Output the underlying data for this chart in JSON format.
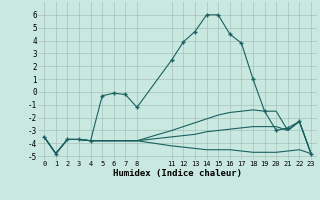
{
  "title": "",
  "xlabel": "Humidex (Indice chaleur)",
  "background_color": "#c8e8e0",
  "grid_color": "#a0b8b0",
  "line_color": "#1a6060",
  "xlim": [
    -0.5,
    23.5
  ],
  "ylim": [
    -5.3,
    7.0
  ],
  "xtick_positions": [
    0,
    1,
    2,
    3,
    4,
    5,
    6,
    7,
    8,
    11,
    12,
    13,
    14,
    15,
    16,
    17,
    18,
    19,
    20,
    21,
    22,
    23
  ],
  "xtick_labels": [
    "0",
    "1",
    "2",
    "3",
    "4",
    "5",
    "6",
    "7",
    "8",
    "11",
    "12",
    "13",
    "14",
    "15",
    "16",
    "17",
    "18",
    "19",
    "20",
    "21",
    "22",
    "23"
  ],
  "yticks": [
    -5,
    -4,
    -3,
    -2,
    -1,
    0,
    1,
    2,
    3,
    4,
    5,
    6
  ],
  "series": [
    {
      "x": [
        0,
        1,
        2,
        3,
        4,
        5,
        6,
        7,
        8,
        11,
        12,
        13,
        14,
        15,
        16,
        17,
        18,
        19,
        20,
        21,
        22,
        23
      ],
      "y": [
        -3.5,
        -4.8,
        -3.7,
        -3.7,
        -3.8,
        -0.3,
        -0.1,
        -0.2,
        -1.2,
        2.5,
        3.9,
        4.7,
        6.0,
        6.0,
        4.5,
        3.8,
        1.0,
        -1.5,
        -3.0,
        -2.8,
        -2.3,
        -4.8
      ],
      "has_markers": true
    },
    {
      "x": [
        0,
        1,
        2,
        3,
        4,
        5,
        6,
        7,
        8,
        11,
        12,
        13,
        14,
        15,
        16,
        17,
        18,
        19,
        20,
        21,
        22,
        23
      ],
      "y": [
        -3.5,
        -4.8,
        -3.7,
        -3.7,
        -3.8,
        -3.8,
        -3.8,
        -3.8,
        -3.8,
        -3.0,
        -2.7,
        -2.4,
        -2.1,
        -1.8,
        -1.6,
        -1.5,
        -1.4,
        -1.5,
        -1.5,
        -3.0,
        -2.3,
        -4.8
      ],
      "has_markers": false
    },
    {
      "x": [
        0,
        1,
        2,
        3,
        4,
        5,
        6,
        7,
        8,
        11,
        12,
        13,
        14,
        15,
        16,
        17,
        18,
        19,
        20,
        21,
        22,
        23
      ],
      "y": [
        -3.5,
        -4.8,
        -3.7,
        -3.7,
        -3.8,
        -3.8,
        -3.8,
        -3.8,
        -3.8,
        -3.5,
        -3.4,
        -3.3,
        -3.1,
        -3.0,
        -2.9,
        -2.8,
        -2.7,
        -2.7,
        -2.7,
        -3.0,
        -2.3,
        -4.8
      ],
      "has_markers": false
    },
    {
      "x": [
        0,
        1,
        2,
        3,
        4,
        5,
        6,
        7,
        8,
        11,
        12,
        13,
        14,
        15,
        16,
        17,
        18,
        19,
        20,
        21,
        22,
        23
      ],
      "y": [
        -3.5,
        -4.8,
        -3.7,
        -3.7,
        -3.8,
        -3.8,
        -3.8,
        -3.8,
        -3.8,
        -4.2,
        -4.3,
        -4.4,
        -4.5,
        -4.5,
        -4.5,
        -4.6,
        -4.7,
        -4.7,
        -4.7,
        -4.6,
        -4.5,
        -4.8
      ],
      "has_markers": false
    }
  ]
}
